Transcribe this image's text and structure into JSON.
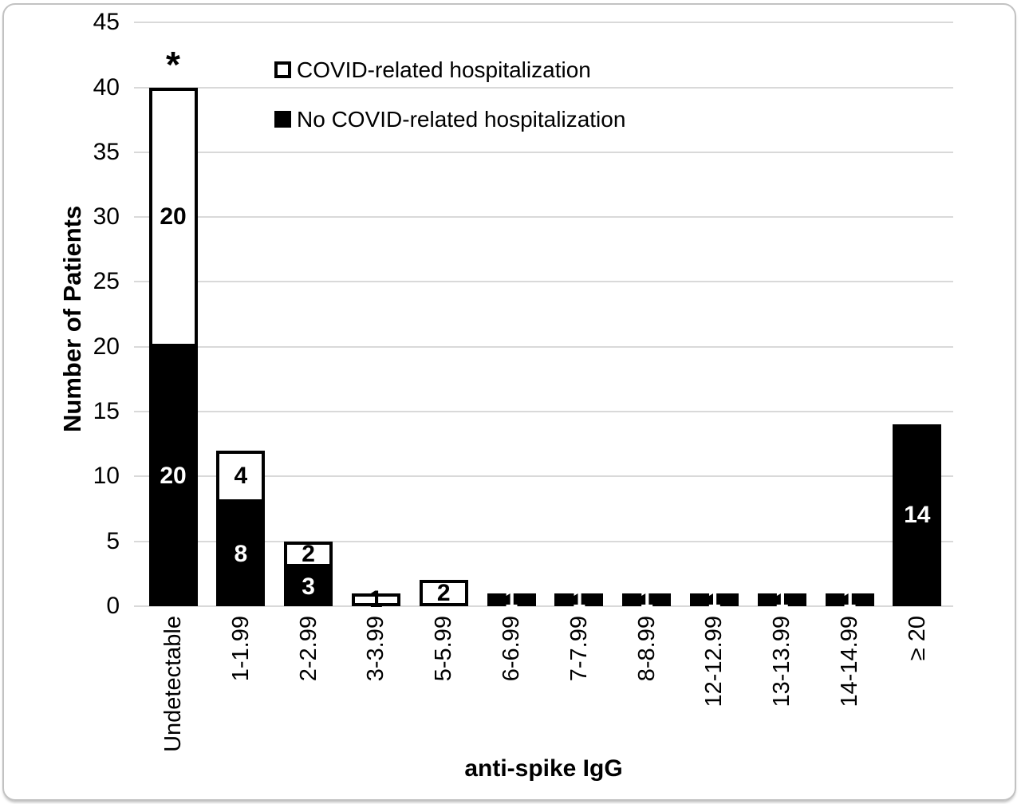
{
  "figure": {
    "x_axis_title": "anti-spike IgG",
    "y_axis_title": "Number of Patients",
    "annotation_symbol": "*"
  },
  "legend": {
    "items": [
      {
        "label": "COVID-related hospitalization",
        "swatch": "white"
      },
      {
        "label": "No COVID-related hospitalization",
        "swatch": "black"
      }
    ]
  },
  "chart_data": {
    "type": "bar",
    "stacked": true,
    "title": "",
    "xlabel": "anti-spike IgG",
    "ylabel": "Number of Patients",
    "ylim": [
      0,
      45
    ],
    "yticks": [
      0,
      5,
      10,
      15,
      20,
      25,
      30,
      35,
      40,
      45
    ],
    "grid": "horizontal",
    "grid_color": "#d9d9d9",
    "legend_position": "top-inside",
    "categories": [
      "Undetectable",
      "1-1.99",
      "2-2.99",
      "3-3.99",
      "5-5.99",
      "6-6.99",
      "7-7.99",
      "8-8.99",
      "12-12.99",
      "13-13.99",
      "14-14.99",
      "≥ 20"
    ],
    "series": [
      {
        "name": "No COVID-related hospitalization",
        "color": "#000000",
        "label_color": "#ffffff",
        "values": [
          20,
          8,
          3,
          0,
          0,
          1,
          1,
          1,
          1,
          1,
          1,
          14
        ]
      },
      {
        "name": "COVID-related hospitalization",
        "color": "#ffffff",
        "label_color": "#000000",
        "values": [
          20,
          4,
          2,
          1,
          2,
          0,
          0,
          0,
          0,
          0,
          0,
          0
        ]
      }
    ],
    "annotations": [
      {
        "text": "*",
        "category": "Undetectable",
        "above_total": 40
      }
    ]
  }
}
